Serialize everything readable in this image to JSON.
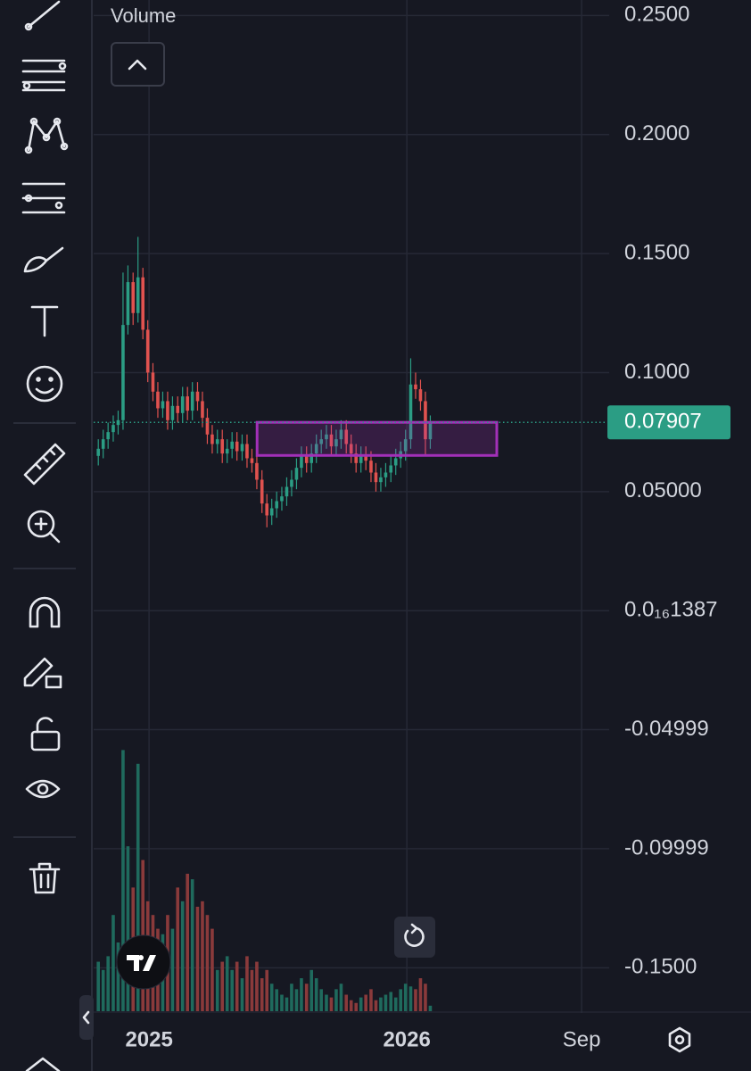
{
  "chart_data": {
    "type": "candlestick",
    "volume_name": "Volume",
    "x": [
      2024.803,
      2024.822,
      2024.841,
      2024.861,
      2024.88,
      2024.899,
      2024.918,
      2024.938,
      2024.957,
      2024.976,
      2024.995,
      2025.015,
      2025.034,
      2025.053,
      2025.072,
      2025.091,
      2025.111,
      2025.13,
      2025.149,
      2025.168,
      2025.188,
      2025.207,
      2025.226,
      2025.245,
      2025.265,
      2025.284,
      2025.303,
      2025.322,
      2025.341,
      2025.361,
      2025.38,
      2025.399,
      2025.418,
      2025.438,
      2025.457,
      2025.476,
      2025.495,
      2025.515,
      2025.534,
      2025.553,
      2025.572,
      2025.591,
      2025.611,
      2025.63,
      2025.649,
      2025.668,
      2025.688,
      2025.707,
      2025.726,
      2025.745,
      2025.765,
      2025.784,
      2025.803,
      2025.822,
      2025.841,
      2025.861,
      2025.88,
      2025.899,
      2025.918,
      2025.938,
      2025.957,
      2025.976,
      2025.995,
      2026.015,
      2026.034,
      2026.053,
      2026.072,
      2026.091
    ],
    "open": [
      0.065,
      0.068,
      0.072,
      0.075,
      0.078,
      0.08,
      0.12,
      0.138,
      0.125,
      0.14,
      0.118,
      0.1,
      0.092,
      0.085,
      0.088,
      0.08,
      0.086,
      0.083,
      0.09,
      0.084,
      0.092,
      0.088,
      0.081,
      0.074,
      0.07,
      0.072,
      0.066,
      0.068,
      0.071,
      0.067,
      0.07,
      0.064,
      0.062,
      0.055,
      0.045,
      0.04,
      0.043,
      0.046,
      0.048,
      0.052,
      0.055,
      0.06,
      0.065,
      0.062,
      0.066,
      0.07,
      0.072,
      0.074,
      0.069,
      0.072,
      0.076,
      0.07,
      0.066,
      0.062,
      0.065,
      0.063,
      0.058,
      0.054,
      0.056,
      0.058,
      0.061,
      0.064,
      0.067,
      0.072,
      0.095,
      0.093,
      0.088,
      0.072
    ],
    "high": [
      0.072,
      0.076,
      0.079,
      0.082,
      0.084,
      0.142,
      0.145,
      0.142,
      0.157,
      0.144,
      0.122,
      0.104,
      0.096,
      0.092,
      0.092,
      0.09,
      0.09,
      0.094,
      0.094,
      0.096,
      0.096,
      0.092,
      0.085,
      0.078,
      0.076,
      0.076,
      0.072,
      0.075,
      0.075,
      0.074,
      0.074,
      0.068,
      0.066,
      0.059,
      0.049,
      0.047,
      0.05,
      0.052,
      0.056,
      0.059,
      0.064,
      0.069,
      0.069,
      0.07,
      0.074,
      0.076,
      0.078,
      0.078,
      0.076,
      0.08,
      0.08,
      0.074,
      0.07,
      0.069,
      0.069,
      0.067,
      0.062,
      0.06,
      0.062,
      0.065,
      0.068,
      0.071,
      0.076,
      0.106,
      0.1,
      0.097,
      0.092,
      0.082
    ],
    "low": [
      0.061,
      0.064,
      0.068,
      0.071,
      0.074,
      0.076,
      0.116,
      0.12,
      0.121,
      0.114,
      0.096,
      0.088,
      0.081,
      0.081,
      0.076,
      0.076,
      0.079,
      0.079,
      0.08,
      0.08,
      0.084,
      0.077,
      0.07,
      0.066,
      0.066,
      0.062,
      0.062,
      0.064,
      0.063,
      0.063,
      0.06,
      0.058,
      0.051,
      0.041,
      0.035,
      0.036,
      0.039,
      0.042,
      0.044,
      0.048,
      0.051,
      0.056,
      0.058,
      0.058,
      0.062,
      0.066,
      0.068,
      0.065,
      0.065,
      0.068,
      0.066,
      0.062,
      0.058,
      0.058,
      0.059,
      0.054,
      0.05,
      0.05,
      0.052,
      0.054,
      0.057,
      0.06,
      0.063,
      0.068,
      0.089,
      0.084,
      0.065,
      0.068
    ],
    "close": [
      0.068,
      0.072,
      0.075,
      0.078,
      0.08,
      0.12,
      0.138,
      0.125,
      0.14,
      0.118,
      0.1,
      0.092,
      0.085,
      0.088,
      0.08,
      0.086,
      0.083,
      0.09,
      0.084,
      0.092,
      0.088,
      0.081,
      0.074,
      0.07,
      0.072,
      0.066,
      0.068,
      0.071,
      0.067,
      0.07,
      0.064,
      0.062,
      0.055,
      0.045,
      0.04,
      0.043,
      0.046,
      0.048,
      0.052,
      0.055,
      0.06,
      0.065,
      0.062,
      0.066,
      0.07,
      0.072,
      0.074,
      0.069,
      0.072,
      0.076,
      0.07,
      0.066,
      0.062,
      0.065,
      0.063,
      0.058,
      0.054,
      0.056,
      0.058,
      0.061,
      0.064,
      0.067,
      0.072,
      0.095,
      0.093,
      0.088,
      0.072,
      0.07907
    ],
    "volume": [
      18,
      15,
      20,
      35,
      25,
      95,
      60,
      45,
      90,
      55,
      40,
      35,
      30,
      28,
      35,
      30,
      45,
      40,
      50,
      48,
      38,
      40,
      35,
      30,
      15,
      18,
      20,
      15,
      18,
      12,
      20,
      15,
      18,
      12,
      15,
      10,
      8,
      6,
      5,
      10,
      8,
      12,
      10,
      15,
      12,
      8,
      6,
      5,
      8,
      10,
      6,
      4,
      3,
      5,
      6,
      8,
      4,
      5,
      6,
      7,
      5,
      8,
      10,
      9,
      8,
      12,
      10,
      2
    ],
    "volume_ylim": [
      0,
      100
    ],
    "up_color": "#2b9d84",
    "down_color": "#e0524f",
    "volume_up_color": "#1f6a5d",
    "volume_down_color": "#8a3a3b",
    "last_price": {
      "value": 0.07907,
      "label": "0.07907"
    },
    "zone": {
      "top": 0.0791,
      "bottom": 0.0652,
      "x": [
        2025.419,
        2026.349
      ],
      "color": "#a230b8"
    },
    "xlim": [
      2024.785,
      2026.785
    ],
    "xticks": [
      {
        "value": 2025,
        "label": "2025"
      },
      {
        "value": 2026,
        "label": "2026"
      },
      {
        "value": 2026.678,
        "label": "Sep"
      }
    ],
    "ylim": [
      -0.169,
      0.2565
    ],
    "yticks": [
      {
        "value": 0.25,
        "label": "0.2500"
      },
      {
        "value": 0.2,
        "label": "0.2000"
      },
      {
        "value": 0.15,
        "label": "0.1500"
      },
      {
        "value": 0.1,
        "label": "0.1000"
      },
      {
        "value": 0.05,
        "label": "0.05000"
      },
      {
        "value": 0,
        "label": "0.0₁₆1387"
      },
      {
        "value": -0.04999,
        "label": "-0.04999"
      },
      {
        "value": -0.09999,
        "label": "-0.09999"
      },
      {
        "value": -0.15,
        "label": "-0.1500"
      }
    ],
    "grid": true
  }
}
